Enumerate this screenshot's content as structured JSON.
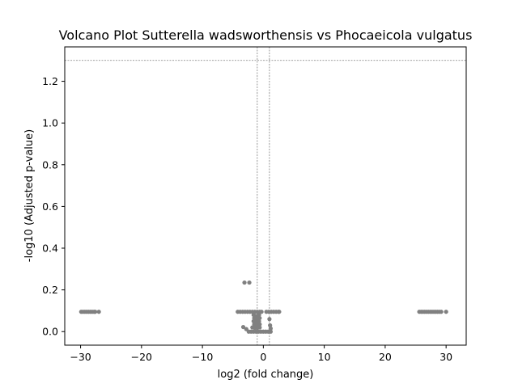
{
  "chart_data": {
    "type": "scatter",
    "title": "Volcano Plot Sutterella wadsworthensis vs Phocaeicola vulgatus",
    "xlabel": "log2 (fold change)",
    "ylabel": "-log10 (Adjusted p-value)",
    "xlim": [
      -32.6,
      33.3
    ],
    "ylim": [
      -0.065,
      1.365
    ],
    "xticks": [
      -30,
      -20,
      -10,
      0,
      10,
      20,
      30
    ],
    "yticks": [
      0.0,
      0.2,
      0.4,
      0.6,
      0.8,
      1.0,
      1.2
    ],
    "xtick_labels": [
      "−30",
      "−20",
      "−10",
      "0",
      "10",
      "20",
      "30"
    ],
    "ytick_labels": [
      "0.0",
      "0.2",
      "0.4",
      "0.6",
      "0.8",
      "1.0",
      "1.2"
    ],
    "threshold_lines": {
      "fold_change_x": [
        -1,
        1
      ],
      "significance_y": 1.3
    },
    "point_color": "#808080",
    "threshold_line_color": "#808080",
    "grid": false,
    "legend": "none",
    "points": [
      {
        "x": -29.9,
        "y": 0.095
      },
      {
        "x": -29.6,
        "y": 0.095
      },
      {
        "x": -29.3,
        "y": 0.095
      },
      {
        "x": -29.0,
        "y": 0.095
      },
      {
        "x": -28.7,
        "y": 0.095
      },
      {
        "x": -28.4,
        "y": 0.095
      },
      {
        "x": -28.1,
        "y": 0.095
      },
      {
        "x": -27.8,
        "y": 0.095
      },
      {
        "x": -27.6,
        "y": 0.095
      },
      {
        "x": -27.0,
        "y": 0.095
      },
      {
        "x": -3.1,
        "y": 0.235
      },
      {
        "x": -2.3,
        "y": 0.235
      },
      {
        "x": -4.2,
        "y": 0.095
      },
      {
        "x": -3.8,
        "y": 0.095
      },
      {
        "x": -3.4,
        "y": 0.095
      },
      {
        "x": -3.0,
        "y": 0.095
      },
      {
        "x": -2.6,
        "y": 0.095
      },
      {
        "x": -2.2,
        "y": 0.095
      },
      {
        "x": -1.8,
        "y": 0.095
      },
      {
        "x": -1.4,
        "y": 0.095
      },
      {
        "x": -1.0,
        "y": 0.095
      },
      {
        "x": -0.6,
        "y": 0.095
      },
      {
        "x": -0.3,
        "y": 0.095
      },
      {
        "x": 0.5,
        "y": 0.095
      },
      {
        "x": 0.9,
        "y": 0.095
      },
      {
        "x": 1.3,
        "y": 0.095
      },
      {
        "x": 1.7,
        "y": 0.095
      },
      {
        "x": 2.1,
        "y": 0.095
      },
      {
        "x": 2.5,
        "y": 0.095
      },
      {
        "x": 2.6,
        "y": 0.095
      },
      {
        "x": -1.6,
        "y": 0.08
      },
      {
        "x": -1.3,
        "y": 0.075
      },
      {
        "x": -1.0,
        "y": 0.075
      },
      {
        "x": -0.7,
        "y": 0.08
      },
      {
        "x": -1.5,
        "y": 0.065
      },
      {
        "x": -1.2,
        "y": 0.06
      },
      {
        "x": -0.9,
        "y": 0.06
      },
      {
        "x": -0.6,
        "y": 0.065
      },
      {
        "x": -1.6,
        "y": 0.05
      },
      {
        "x": -1.3,
        "y": 0.045
      },
      {
        "x": -1.0,
        "y": 0.045
      },
      {
        "x": -0.7,
        "y": 0.05
      },
      {
        "x": -1.5,
        "y": 0.035
      },
      {
        "x": -1.2,
        "y": 0.03
      },
      {
        "x": -0.9,
        "y": 0.03
      },
      {
        "x": -0.6,
        "y": 0.035
      },
      {
        "x": -1.8,
        "y": 0.02
      },
      {
        "x": -1.4,
        "y": 0.018
      },
      {
        "x": -1.0,
        "y": 0.018
      },
      {
        "x": -0.6,
        "y": 0.02
      },
      {
        "x": -3.3,
        "y": 0.022
      },
      {
        "x": -2.8,
        "y": 0.012
      },
      {
        "x": -2.4,
        "y": 0.0
      },
      {
        "x": -2.0,
        "y": 0.0
      },
      {
        "x": -1.6,
        "y": 0.0
      },
      {
        "x": -1.2,
        "y": 0.0
      },
      {
        "x": -0.8,
        "y": 0.0
      },
      {
        "x": -0.4,
        "y": 0.0
      },
      {
        "x": 0.0,
        "y": 0.0
      },
      {
        "x": 0.4,
        "y": 0.0
      },
      {
        "x": 0.8,
        "y": 0.0
      },
      {
        "x": 1.2,
        "y": 0.0
      },
      {
        "x": 1.0,
        "y": 0.06
      },
      {
        "x": 1.1,
        "y": 0.03
      },
      {
        "x": 1.2,
        "y": 0.015
      },
      {
        "x": 25.6,
        "y": 0.095
      },
      {
        "x": 25.9,
        "y": 0.095
      },
      {
        "x": 26.2,
        "y": 0.095
      },
      {
        "x": 26.5,
        "y": 0.095
      },
      {
        "x": 26.8,
        "y": 0.095
      },
      {
        "x": 27.1,
        "y": 0.095
      },
      {
        "x": 27.4,
        "y": 0.095
      },
      {
        "x": 27.7,
        "y": 0.095
      },
      {
        "x": 28.0,
        "y": 0.095
      },
      {
        "x": 28.3,
        "y": 0.095
      },
      {
        "x": 28.6,
        "y": 0.095
      },
      {
        "x": 28.9,
        "y": 0.095
      },
      {
        "x": 29.2,
        "y": 0.095
      },
      {
        "x": 30.0,
        "y": 0.095
      }
    ]
  }
}
